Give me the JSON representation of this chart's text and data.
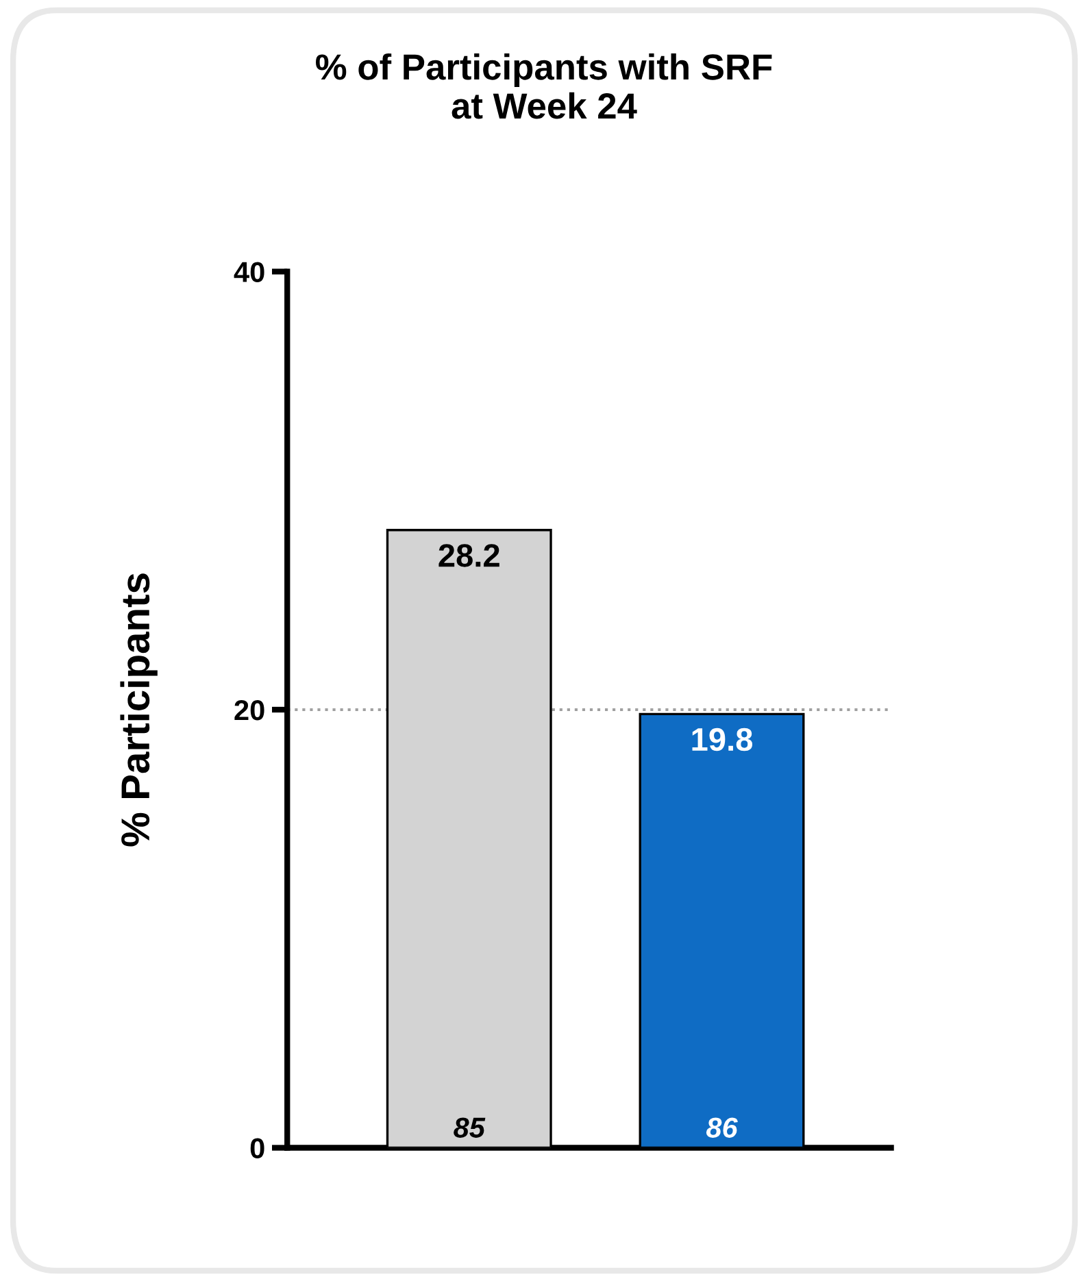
{
  "chart_data": {
    "type": "bar",
    "title": "% of Participants with SRF\nat Week 24",
    "ylabel": "% Participants",
    "categories": [
      null,
      null
    ],
    "values": [
      28.2,
      19.8
    ],
    "colors": [
      "#d3d3d3",
      "#0f6cc4"
    ],
    "ylim": [
      0,
      40
    ],
    "yticks": [
      0,
      20,
      40
    ],
    "grid": false,
    "data_labels": true,
    "ref_lines": [
      {
        "axis": "y",
        "value": 20,
        "color": "#a0a0a0",
        "line_style": "dotted"
      }
    ],
    "annotations": [
      "85",
      "86"
    ]
  }
}
